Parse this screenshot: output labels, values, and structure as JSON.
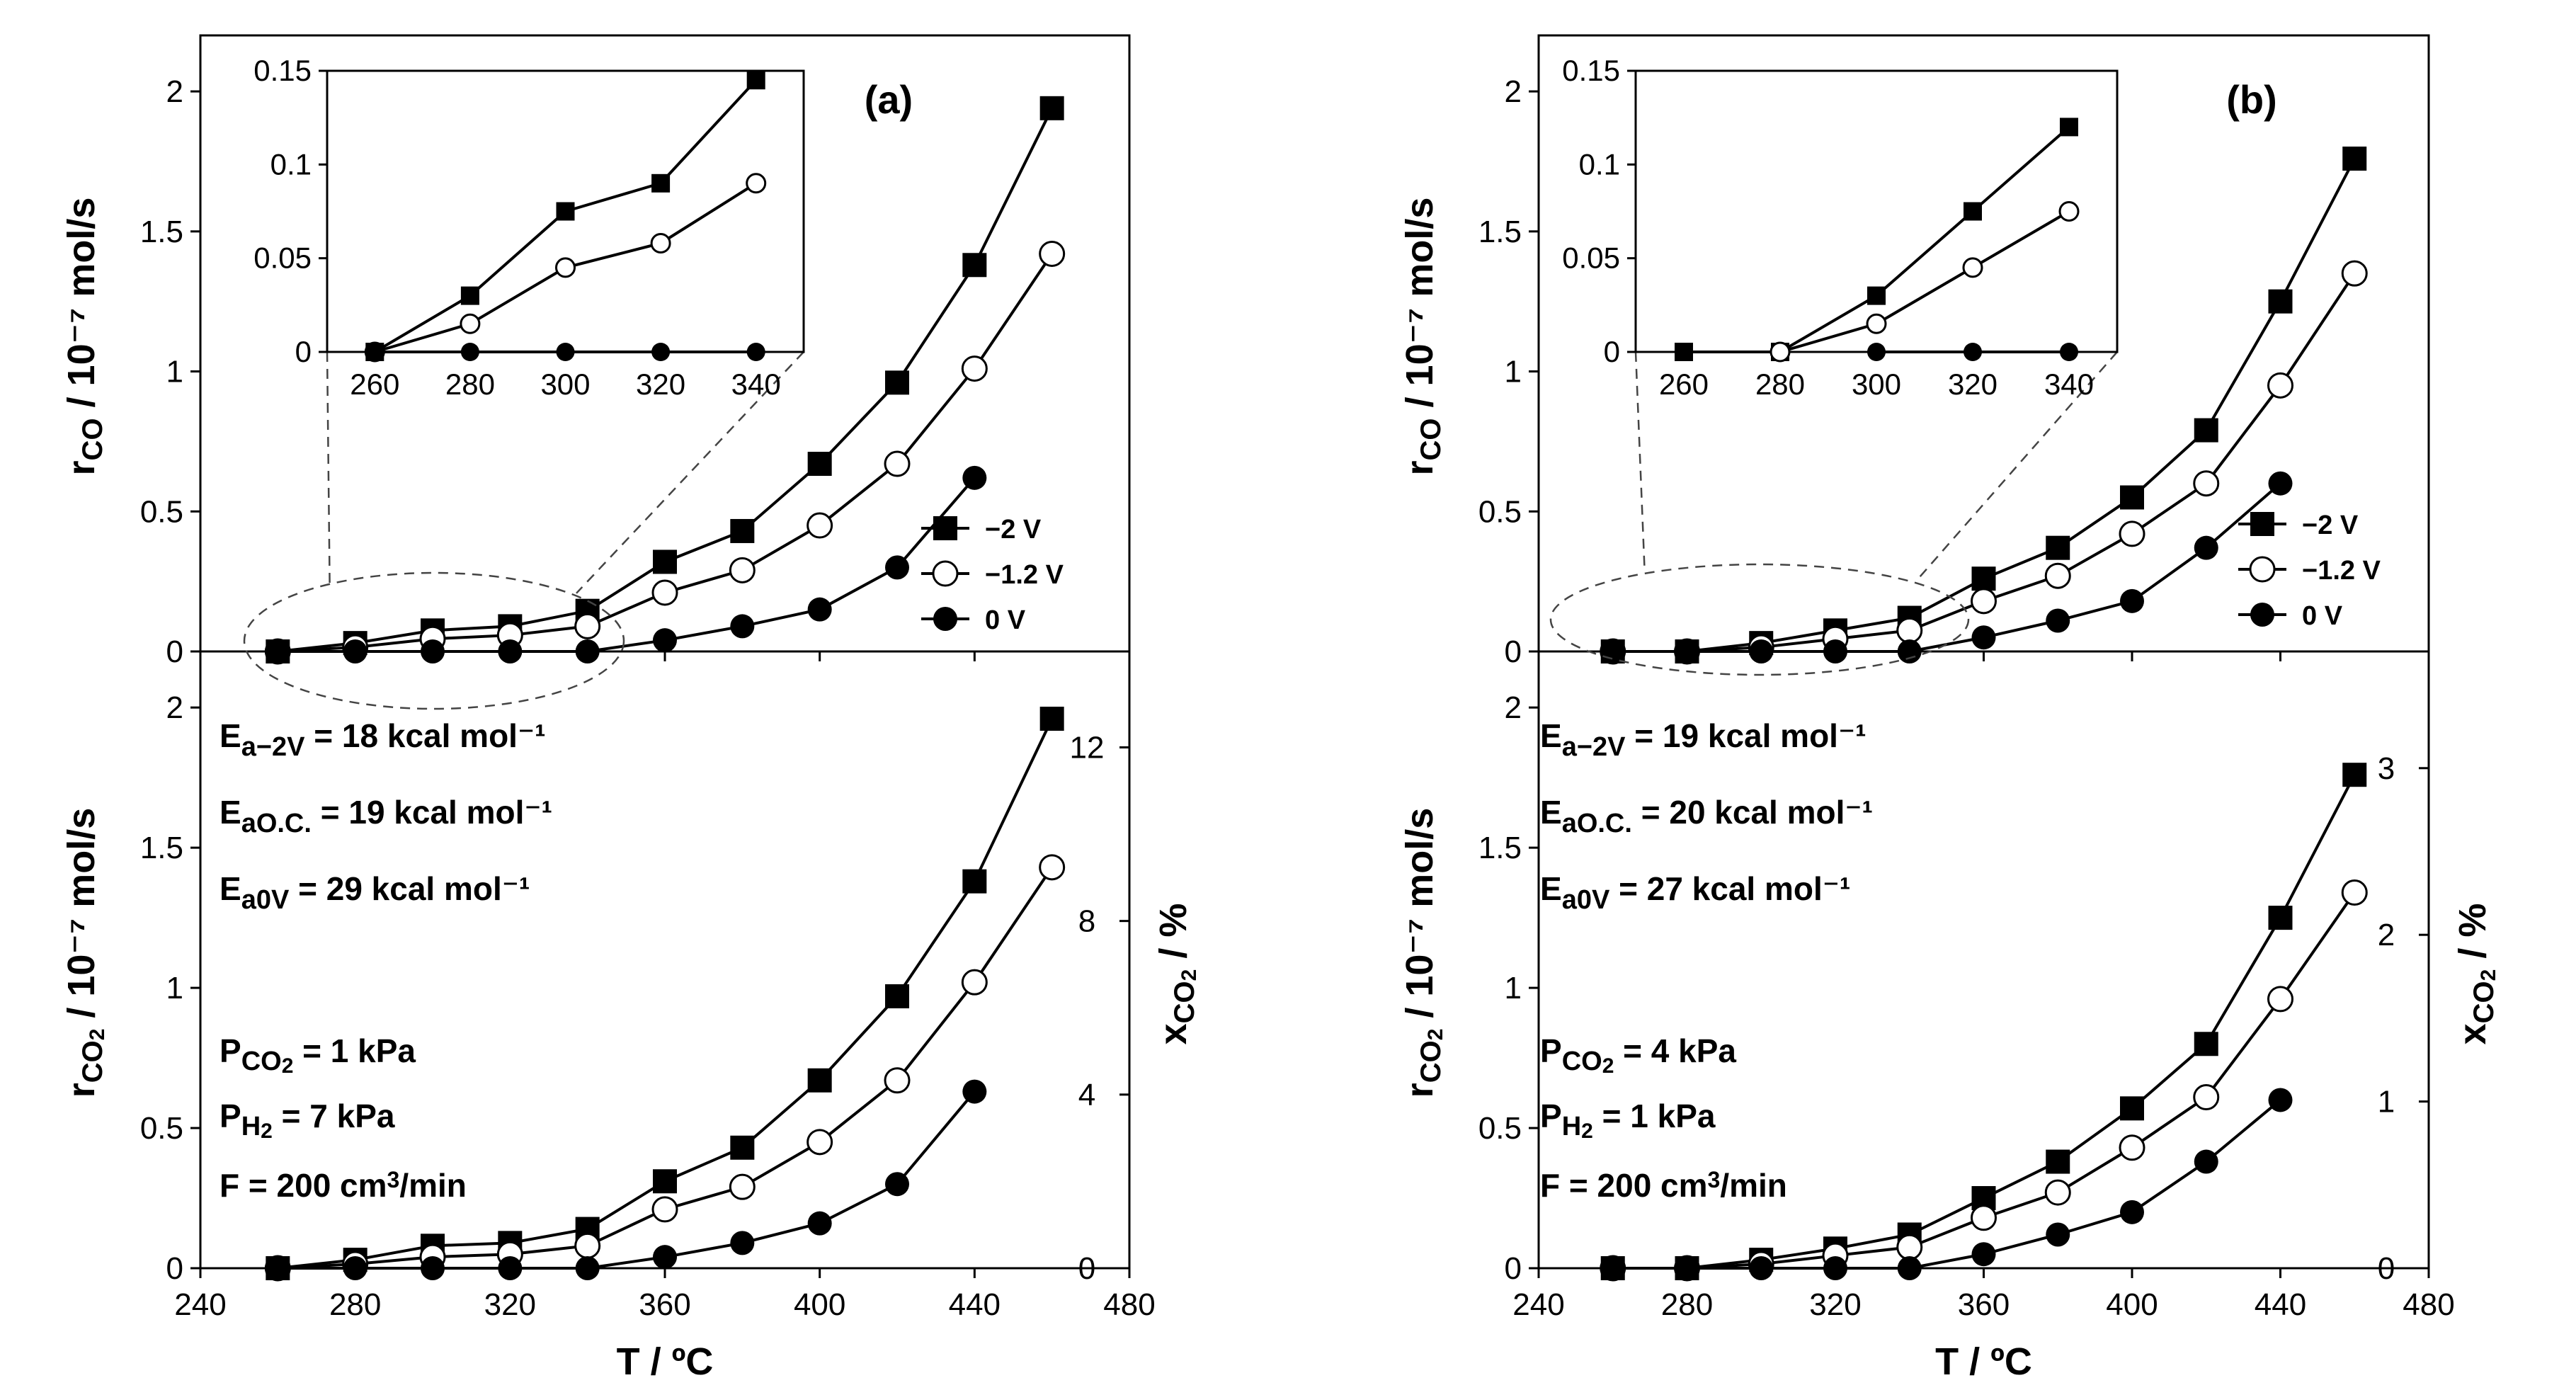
{
  "chart_data": [
    {
      "type": "line",
      "panel": "a",
      "panel_label": "(a)",
      "x_axis": {
        "title": "T / ºC",
        "range": [
          240,
          480
        ],
        "ticks": [
          240,
          280,
          320,
          360,
          400,
          440,
          480
        ]
      },
      "x": [
        260,
        280,
        300,
        320,
        340,
        360,
        380,
        400,
        420,
        440,
        460
      ],
      "top": {
        "ylabel": {
          "main": "r",
          "sub": "CO",
          "rest": " / 10⁻⁷ mol/s"
        },
        "ylim": [
          0,
          2.2
        ],
        "yticks": [
          0,
          0.5,
          1,
          1.5,
          2
        ],
        "ytick_labels": [
          "0",
          "0.5",
          "1",
          "1.5",
          "2"
        ],
        "series": [
          {
            "name": "−2 V",
            "marker": "square",
            "values": [
              0,
              0.03,
              0.075,
              0.09,
              0.145,
              0.32,
              0.43,
              0.67,
              0.96,
              1.38,
              1.94
            ]
          },
          {
            "name": "−1.2 V",
            "marker": "open-circle",
            "values": [
              0,
              0.015,
              0.045,
              0.058,
              0.09,
              0.21,
              0.29,
              0.45,
              0.67,
              1.01,
              1.42
            ]
          },
          {
            "name": "0 V",
            "marker": "filled-circle",
            "values": [
              0,
              0,
              0,
              0,
              0,
              0.04,
              0.09,
              0.15,
              0.3,
              0.62,
              null
            ]
          }
        ],
        "inset": {
          "x": [
            260,
            280,
            300,
            320,
            340
          ],
          "xlim": [
            250,
            350
          ],
          "xticks": [
            260,
            280,
            300,
            320,
            340
          ],
          "ylim": [
            0,
            0.15
          ],
          "yticks": [
            0,
            0.05,
            0.1,
            0.15
          ],
          "ytick_labels": [
            "0",
            "0.05",
            "0.1",
            "0.15"
          ],
          "series": [
            {
              "name": "−2 V",
              "marker": "square",
              "values": [
                0,
                0.03,
                0.075,
                0.09,
                0.145
              ]
            },
            {
              "name": "−1.2 V",
              "marker": "open-circle",
              "values": [
                0,
                0.015,
                0.045,
                0.058,
                0.09
              ]
            },
            {
              "name": "0 V",
              "marker": "filled-circle",
              "values": [
                0,
                0,
                0,
                0,
                0
              ]
            }
          ]
        },
        "legend": {
          "placement": "center-right",
          "entries": [
            "−2 V",
            "−1.2 V",
            "0 V"
          ]
        }
      },
      "bottom": {
        "ylabel": {
          "main": "r",
          "sub": "CO",
          "sub2": "2",
          "rest": " / 10⁻⁷ mol/s"
        },
        "ylim": [
          0,
          2.2
        ],
        "yticks": [
          0,
          0.5,
          1,
          1.5,
          2
        ],
        "ytick_labels": [
          "0",
          "0.5",
          "1",
          "1.5",
          "2"
        ],
        "y2label": {
          "main": "x",
          "sub": "CO",
          "sub2": "2",
          "rest": " / %"
        },
        "y2lim": [
          0,
          14.21
        ],
        "y2ticks": [
          0,
          4,
          8,
          12
        ],
        "y2tick_labels": [
          "0",
          "4",
          "8",
          "12"
        ],
        "series": [
          {
            "name": "−2 V",
            "marker": "square",
            "values": [
              0,
              0.03,
              0.08,
              0.09,
              0.14,
              0.31,
              0.43,
              0.67,
              0.97,
              1.38,
              1.96
            ]
          },
          {
            "name": "−1.2 V",
            "marker": "open-circle",
            "values": [
              0,
              0.015,
              0.04,
              0.05,
              0.08,
              0.21,
              0.29,
              0.45,
              0.67,
              1.02,
              1.43
            ]
          },
          {
            "name": "0 V",
            "marker": "filled-circle",
            "values": [
              0,
              0,
              0,
              0,
              0,
              0.04,
              0.09,
              0.16,
              0.3,
              0.63,
              null
            ]
          }
        ],
        "annotations": {
          "ea": [
            {
              "main": "E",
              "sub": "a−2V",
              "value": "= 18 kcal mol⁻¹"
            },
            {
              "main": "E",
              "sub": "aO.C.",
              "value": "= 19 kcal mol⁻¹"
            },
            {
              "main": "E",
              "sub": "a0V",
              "value": "= 29 kcal mol⁻¹"
            }
          ],
          "conditions": [
            {
              "main": "P",
              "sub": "CO",
              "sub2": "2",
              "value": " = 1 kPa"
            },
            {
              "main": "P",
              "sub": "H",
              "sub2": "2",
              "value": " = 7 kPa"
            }
          ],
          "flow": {
            "text": "F = 200 cm",
            "sup": "3",
            "tail": "/min"
          }
        }
      }
    },
    {
      "type": "line",
      "panel": "b",
      "panel_label": "(b)",
      "x_axis": {
        "title": "T / ºC",
        "range": [
          240,
          480
        ],
        "ticks": [
          240,
          280,
          320,
          360,
          400,
          440,
          480
        ]
      },
      "x": [
        260,
        280,
        300,
        320,
        340,
        360,
        380,
        400,
        420,
        440,
        460
      ],
      "top": {
        "ylabel": {
          "main": "r",
          "sub": "CO",
          "rest": " / 10⁻⁷ mol/s"
        },
        "ylim": [
          0,
          2.2
        ],
        "yticks": [
          0,
          0.5,
          1,
          1.5,
          2
        ],
        "ytick_labels": [
          "0",
          "0.5",
          "1",
          "1.5",
          "2"
        ],
        "series": [
          {
            "name": "−2 V",
            "marker": "square",
            "values": [
              0,
              0,
              0.03,
              0.075,
              0.12,
              0.26,
              0.37,
              0.55,
              0.79,
              1.25,
              1.76
            ]
          },
          {
            "name": "−1.2 V",
            "marker": "open-circle",
            "values": [
              0,
              0,
              0.015,
              0.045,
              0.075,
              0.18,
              0.27,
              0.42,
              0.6,
              0.95,
              1.35
            ]
          },
          {
            "name": "0 V",
            "marker": "filled-circle",
            "values": [
              0,
              0,
              0,
              0,
              0,
              0.05,
              0.11,
              0.18,
              0.37,
              0.6,
              null
            ]
          }
        ],
        "inset": {
          "x": [
            260,
            280,
            300,
            320,
            340
          ],
          "xlim": [
            250,
            350
          ],
          "xticks": [
            260,
            280,
            300,
            320,
            340
          ],
          "ylim": [
            0,
            0.15
          ],
          "yticks": [
            0,
            0.05,
            0.1,
            0.15
          ],
          "ytick_labels": [
            "0",
            "0.05",
            "0.1",
            "0.15"
          ],
          "series": [
            {
              "name": "−2 V",
              "marker": "square",
              "values": [
                0,
                0,
                0.03,
                0.075,
                0.12
              ]
            },
            {
              "name": "−1.2 V",
              "marker": "open-circle",
              "values": [
                null,
                0,
                0.015,
                0.045,
                0.075
              ]
            },
            {
              "name": "0 V",
              "marker": "filled-circle",
              "values": [
                null,
                null,
                0,
                0,
                0
              ]
            }
          ]
        },
        "legend": {
          "placement": "center-right",
          "entries": [
            "−2 V",
            "−1.2 V",
            "0 V"
          ]
        }
      },
      "bottom": {
        "ylabel": {
          "main": "r",
          "sub": "CO",
          "sub2": "2",
          "rest": " / 10⁻⁷ mol/s"
        },
        "ylim": [
          0,
          2.2
        ],
        "yticks": [
          0,
          0.5,
          1,
          1.5,
          2
        ],
        "ytick_labels": [
          "0",
          "0.5",
          "1",
          "1.5",
          "2"
        ],
        "y2label": {
          "main": "x",
          "sub": "CO",
          "sub2": "2",
          "rest": " / %"
        },
        "y2lim": [
          0,
          3.7
        ],
        "y2ticks": [
          0,
          1,
          2,
          3
        ],
        "y2tick_labels": [
          "0",
          "1",
          "2",
          "3"
        ],
        "series": [
          {
            "name": "−2 V",
            "marker": "square",
            "values": [
              0,
              0,
              0.03,
              0.07,
              0.12,
              0.25,
              0.38,
              0.57,
              0.8,
              1.25,
              1.76
            ]
          },
          {
            "name": "−1.2 V",
            "marker": "open-circle",
            "values": [
              0,
              0,
              0.015,
              0.045,
              0.075,
              0.18,
              0.27,
              0.43,
              0.61,
              0.96,
              1.34
            ]
          },
          {
            "name": "0 V",
            "marker": "filled-circle",
            "values": [
              0,
              0,
              0,
              0,
              0,
              0.05,
              0.12,
              0.2,
              0.38,
              0.6,
              null
            ]
          }
        ],
        "annotations": {
          "ea": [
            {
              "main": "E",
              "sub": "a−2V",
              "value": "= 19 kcal mol⁻¹"
            },
            {
              "main": "E",
              "sub": "aO.C.",
              "value": "= 20 kcal mol⁻¹"
            },
            {
              "main": "E",
              "sub": "a0V",
              "value": "= 27 kcal mol⁻¹"
            }
          ],
          "conditions": [
            {
              "main": "P",
              "sub": "CO",
              "sub2": "2",
              "value": " = 4 kPa"
            },
            {
              "main": "P",
              "sub": "H",
              "sub2": "2",
              "value": " = 1 kPa"
            }
          ],
          "flow": {
            "text": "F = 200 cm",
            "sup": "3",
            "tail": "/min"
          }
        }
      }
    }
  ]
}
